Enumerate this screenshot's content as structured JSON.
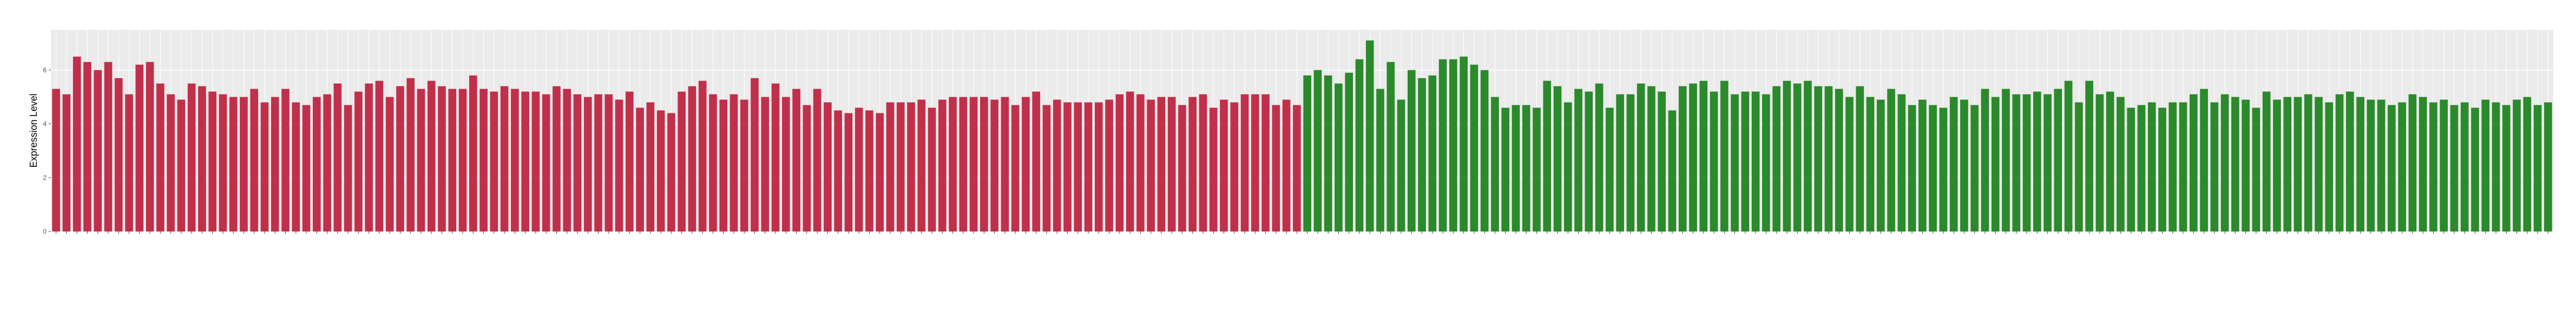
{
  "chart_data": {
    "type": "bar",
    "y_label": "Expression Level",
    "categories": [
      null,
      null,
      null,
      null,
      null,
      null,
      null,
      null,
      null,
      null,
      null,
      null,
      null,
      null,
      null,
      null,
      null,
      null,
      null,
      null,
      null,
      null,
      null,
      null,
      null,
      null,
      null,
      null,
      null,
      null,
      null,
      null,
      null,
      null,
      null,
      null,
      null,
      null,
      null,
      null,
      null,
      null,
      null,
      null,
      null,
      null,
      null,
      null,
      null,
      null,
      null,
      null,
      null,
      null,
      null,
      null,
      null,
      null,
      null,
      null,
      null,
      null,
      null,
      null,
      null,
      null,
      null,
      null,
      null,
      null,
      null,
      null,
      null,
      null,
      null,
      null,
      null,
      null,
      null,
      null,
      null,
      null,
      null,
      null,
      null,
      null,
      null,
      null,
      null,
      null,
      null,
      null,
      null,
      null,
      null,
      null,
      null,
      null,
      null,
      null,
      null,
      null,
      null,
      null,
      null,
      null,
      null,
      null,
      null,
      null,
      null,
      null,
      null,
      null,
      null,
      null,
      null,
      null,
      null,
      null,
      null,
      null,
      null,
      null,
      null,
      null,
      null,
      null,
      null,
      null,
      null,
      null,
      null,
      null,
      null,
      null,
      null,
      null,
      null,
      null,
      null,
      null,
      null,
      null,
      null,
      null,
      null,
      null,
      null,
      null,
      null,
      null,
      null,
      null,
      null,
      null,
      null,
      null,
      null,
      null,
      null,
      null,
      null,
      null,
      null,
      null,
      null,
      null,
      null,
      null,
      null,
      null,
      null,
      null,
      null,
      null,
      null,
      null,
      null,
      null,
      null,
      null,
      null,
      null,
      null,
      null,
      null,
      null,
      null,
      null,
      null,
      null,
      null,
      null,
      null,
      null,
      null,
      null,
      null,
      null,
      null,
      null,
      null,
      null,
      null,
      null,
      null,
      null,
      null,
      null,
      null,
      null,
      null,
      null,
      null,
      null,
      null,
      null,
      null,
      null,
      null,
      null,
      null,
      null,
      null,
      null,
      null,
      null,
      null,
      null,
      null,
      null,
      null,
      null,
      null,
      null,
      null,
      null,
      null,
      null
    ],
    "series": [
      {
        "color": "#c1304a",
        "values": [
          5.3,
          5.1,
          6.5,
          6.3,
          6.0,
          6.3,
          5.7,
          5.1,
          6.2,
          6.3,
          5.5,
          5.1,
          4.9,
          5.5,
          5.4,
          5.2,
          5.1,
          5.0,
          5.0,
          5.3,
          4.8,
          5.0,
          5.3,
          4.8,
          4.7,
          5.0,
          5.1,
          5.5,
          4.7,
          5.2,
          5.5,
          5.6,
          5.0,
          5.4,
          5.7,
          5.3,
          5.6,
          5.4,
          5.3,
          5.3,
          5.8,
          5.3,
          5.2,
          5.4,
          5.3,
          5.2,
          5.2,
          5.1,
          5.4,
          5.3,
          5.1,
          5.0,
          5.1,
          5.1,
          4.9,
          5.2,
          4.6,
          4.8,
          4.5,
          4.4,
          5.2,
          5.4,
          5.6,
          5.1,
          4.9,
          5.1,
          4.9,
          5.7,
          5.0,
          5.5,
          5.0,
          5.3,
          4.7,
          5.3,
          4.8,
          4.5,
          4.4,
          4.6,
          4.5,
          4.4,
          4.8,
          4.8,
          4.8,
          4.9,
          4.6,
          4.9,
          5.0,
          5.0,
          5.0,
          5.0,
          4.9,
          5.0,
          4.7,
          5.0,
          5.2,
          4.7,
          4.9,
          4.8,
          4.8,
          4.8,
          4.8,
          4.9,
          5.1,
          5.2,
          5.1,
          4.9,
          5.0,
          5.0,
          4.7,
          5.0,
          5.1,
          4.6,
          4.9,
          4.8,
          5.1,
          5.1,
          5.1,
          4.7,
          4.9,
          4.7,
          null,
          null,
          null,
          null,
          null,
          null,
          null,
          null,
          null,
          null,
          null,
          null,
          null,
          null,
          null,
          null,
          null,
          null,
          null,
          null,
          null,
          null,
          null,
          null,
          null,
          null,
          null,
          null,
          null,
          null,
          null,
          null,
          null,
          null,
          null,
          null,
          null,
          null,
          null,
          null,
          null,
          null,
          null,
          null,
          null,
          null,
          null,
          null,
          null,
          null,
          null,
          null,
          null,
          null,
          null,
          null,
          null,
          null,
          null,
          null,
          null,
          null,
          null,
          null,
          null,
          null,
          null,
          null,
          null,
          null,
          null,
          null,
          null,
          null,
          null,
          null,
          null,
          null,
          null,
          null,
          null,
          null,
          null,
          null,
          null,
          null,
          null,
          null,
          null,
          null,
          null,
          null,
          null,
          null,
          null,
          null,
          null,
          null,
          null,
          null,
          null,
          null,
          null,
          null,
          null,
          null,
          null,
          null,
          null,
          null,
          null,
          null,
          null,
          null,
          null,
          null,
          null,
          null,
          null,
          null
        ]
      },
      {
        "color": "#2b8a2b",
        "values": [
          null,
          null,
          null,
          null,
          null,
          null,
          null,
          null,
          null,
          null,
          null,
          null,
          null,
          null,
          null,
          null,
          null,
          null,
          null,
          null,
          null,
          null,
          null,
          null,
          null,
          null,
          null,
          null,
          null,
          null,
          null,
          null,
          null,
          null,
          null,
          null,
          null,
          null,
          null,
          null,
          null,
          null,
          null,
          null,
          null,
          null,
          null,
          null,
          null,
          null,
          null,
          null,
          null,
          null,
          null,
          null,
          null,
          null,
          null,
          null,
          null,
          null,
          null,
          null,
          null,
          null,
          null,
          null,
          null,
          null,
          null,
          null,
          null,
          null,
          null,
          null,
          null,
          null,
          null,
          null,
          null,
          null,
          null,
          null,
          null,
          null,
          null,
          null,
          null,
          null,
          null,
          null,
          null,
          null,
          null,
          null,
          null,
          null,
          null,
          null,
          null,
          null,
          null,
          null,
          null,
          null,
          null,
          null,
          null,
          null,
          null,
          null,
          null,
          null,
          null,
          null,
          null,
          null,
          null,
          null,
          5.8,
          6.0,
          5.8,
          5.5,
          5.9,
          6.4,
          7.1,
          5.3,
          6.3,
          4.9,
          6.0,
          5.7,
          5.8,
          6.4,
          6.4,
          6.5,
          6.2,
          6.0,
          5.0,
          4.6,
          4.7,
          4.7,
          4.6,
          5.6,
          5.4,
          4.8,
          5.3,
          5.2,
          5.5,
          4.6,
          5.1,
          5.1,
          5.5,
          5.4,
          5.2,
          4.5,
          5.4,
          5.5,
          5.6,
          5.2,
          5.6,
          5.1,
          5.2,
          5.2,
          5.1,
          5.4,
          5.6,
          5.5,
          5.6,
          5.4,
          5.4,
          5.3,
          5.0,
          5.4,
          5.0,
          4.9,
          5.3,
          5.1,
          4.7,
          4.9,
          4.7,
          4.6,
          5.0,
          4.9,
          4.7,
          5.3,
          5.0,
          5.3,
          5.1,
          5.1,
          5.2,
          5.1,
          5.3,
          5.6,
          4.8,
          5.6,
          5.1,
          5.2,
          5.0,
          4.6,
          4.7,
          4.8,
          4.6,
          4.8,
          4.8,
          5.1,
          5.3,
          4.8,
          5.1,
          5.0,
          4.9,
          4.6,
          5.2,
          4.9,
          5.0,
          5.0,
          5.1,
          5.0,
          4.8,
          5.1,
          5.2,
          5.0,
          4.9,
          4.9,
          4.7,
          4.8,
          5.1,
          5.0,
          4.8,
          4.9,
          4.7,
          4.8,
          4.6,
          4.9,
          4.8,
          4.7,
          4.9,
          5.0,
          4.7,
          4.8
        ]
      }
    ],
    "ylim": [
      0,
      7.5
    ],
    "yticks": [
      0,
      2,
      4,
      6
    ],
    "grid": true,
    "panel_color": "#ebebeb"
  }
}
